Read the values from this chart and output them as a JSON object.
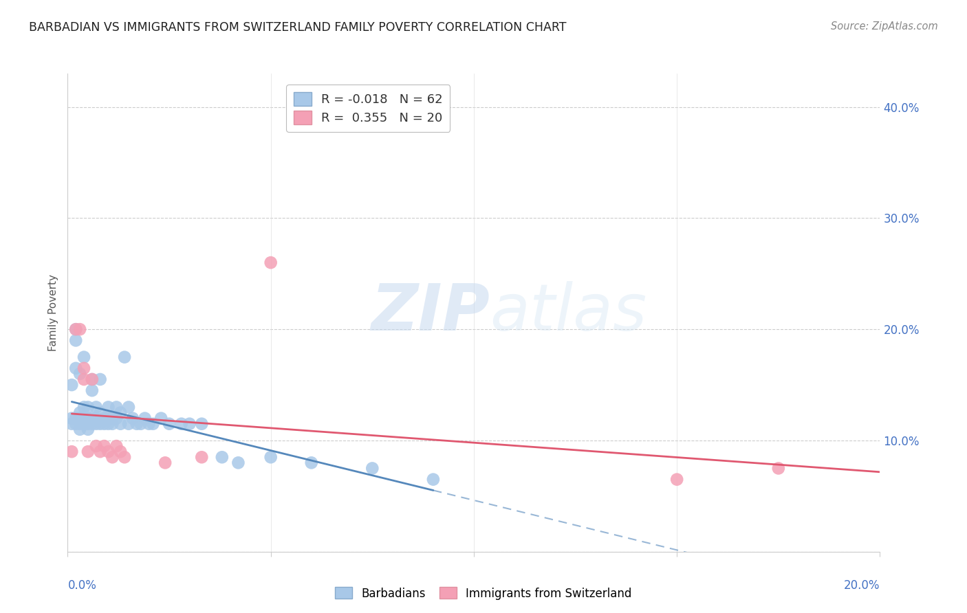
{
  "title": "BARBADIAN VS IMMIGRANTS FROM SWITZERLAND FAMILY POVERTY CORRELATION CHART",
  "source": "Source: ZipAtlas.com",
  "ylabel": "Family Poverty",
  "yticks": [
    0.0,
    0.1,
    0.2,
    0.3,
    0.4
  ],
  "ytick_labels": [
    "",
    "10.0%",
    "20.0%",
    "30.0%",
    "40.0%"
  ],
  "xlim": [
    0.0,
    0.2
  ],
  "ylim": [
    0.0,
    0.43
  ],
  "barbadian_R": -0.018,
  "barbadian_N": 62,
  "switzerland_R": 0.355,
  "switzerland_N": 20,
  "barbadian_color": "#a8c8e8",
  "switzerland_color": "#f4a0b5",
  "trendline_barbadian_solid_color": "#5588bb",
  "trendline_barbadian_dash_color": "#88aaccaa",
  "trendline_switzerland_color": "#e05870",
  "background_color": "#ffffff",
  "watermark_zip": "ZIP",
  "watermark_atlas": "atlas",
  "barbadian_x": [
    0.001,
    0.001,
    0.001,
    0.002,
    0.002,
    0.002,
    0.002,
    0.002,
    0.003,
    0.003,
    0.003,
    0.003,
    0.003,
    0.004,
    0.004,
    0.004,
    0.004,
    0.005,
    0.005,
    0.005,
    0.005,
    0.006,
    0.006,
    0.006,
    0.006,
    0.007,
    0.007,
    0.007,
    0.008,
    0.008,
    0.008,
    0.009,
    0.009,
    0.01,
    0.01,
    0.01,
    0.011,
    0.011,
    0.012,
    0.012,
    0.013,
    0.013,
    0.014,
    0.015,
    0.015,
    0.016,
    0.017,
    0.018,
    0.019,
    0.02,
    0.021,
    0.023,
    0.025,
    0.028,
    0.03,
    0.033,
    0.038,
    0.042,
    0.05,
    0.06,
    0.075,
    0.09
  ],
  "barbadian_y": [
    0.115,
    0.12,
    0.15,
    0.115,
    0.12,
    0.165,
    0.19,
    0.2,
    0.11,
    0.115,
    0.12,
    0.125,
    0.16,
    0.115,
    0.12,
    0.13,
    0.175,
    0.11,
    0.115,
    0.12,
    0.13,
    0.115,
    0.12,
    0.145,
    0.155,
    0.115,
    0.12,
    0.13,
    0.115,
    0.125,
    0.155,
    0.115,
    0.12,
    0.115,
    0.12,
    0.13,
    0.115,
    0.12,
    0.12,
    0.13,
    0.115,
    0.125,
    0.175,
    0.115,
    0.13,
    0.12,
    0.115,
    0.115,
    0.12,
    0.115,
    0.115,
    0.12,
    0.115,
    0.115,
    0.115,
    0.115,
    0.085,
    0.08,
    0.085,
    0.08,
    0.075,
    0.065
  ],
  "switzerland_x": [
    0.001,
    0.002,
    0.003,
    0.004,
    0.004,
    0.005,
    0.006,
    0.007,
    0.008,
    0.009,
    0.01,
    0.011,
    0.012,
    0.013,
    0.014,
    0.024,
    0.033,
    0.05,
    0.15,
    0.175
  ],
  "switzerland_y": [
    0.09,
    0.2,
    0.2,
    0.165,
    0.155,
    0.09,
    0.155,
    0.095,
    0.09,
    0.095,
    0.09,
    0.085,
    0.095,
    0.09,
    0.085,
    0.08,
    0.085,
    0.26,
    0.065,
    0.075
  ],
  "trendline_barb_x0": 0.001,
  "trendline_barb_x1": 0.09,
  "trendline_barb_x_dash_end": 0.2,
  "trendline_swit_x0": 0.001,
  "trendline_swit_x1": 0.2
}
